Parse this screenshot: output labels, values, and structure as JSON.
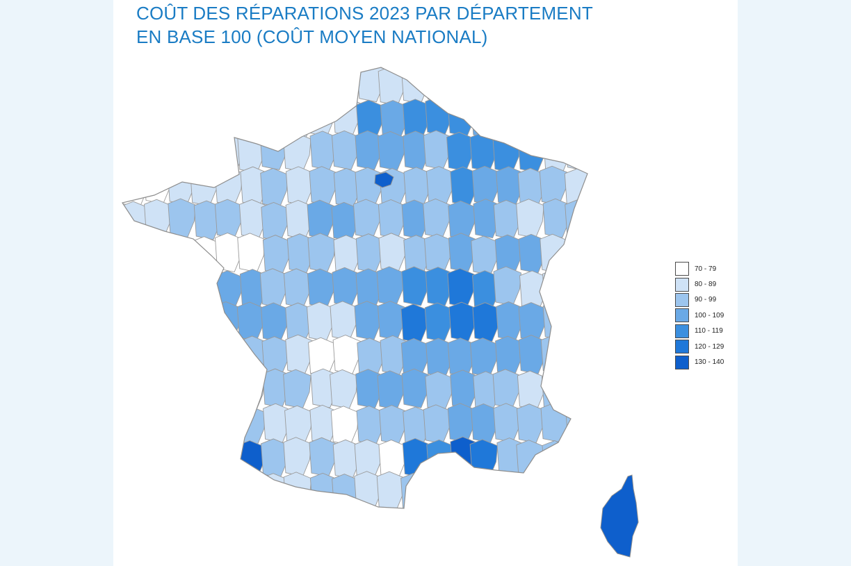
{
  "title": {
    "line1": "COÛT DES RÉPARATIONS 2023 PAR DÉPARTEMENT",
    "line2": "EN BASE 100 (COÛT MOYEN NATIONAL)"
  },
  "colors": {
    "title": "#1a7cc4",
    "border": "#8e8e8e",
    "background": "#ecf5fb"
  },
  "legend": [
    {
      "label": "70 - 79",
      "color": "#ffffff"
    },
    {
      "label": "80 - 89",
      "color": "#cfe2f6"
    },
    {
      "label": "90 - 99",
      "color": "#9cc5ee"
    },
    {
      "label": "100 - 109",
      "color": "#6aa9e6"
    },
    {
      "label": "110 - 119",
      "color": "#3b8fdf"
    },
    {
      "label": "120 - 129",
      "color": "#1f78d9"
    },
    {
      "label": "130 - 140",
      "color": "#0e5fcc"
    }
  ]
}
